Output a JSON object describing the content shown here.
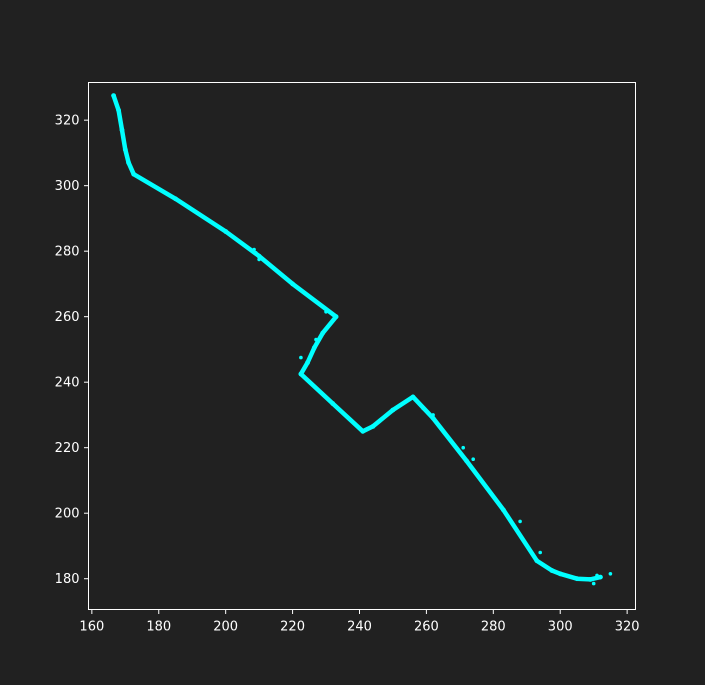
{
  "chart_data": {
    "type": "scatter",
    "title": "",
    "xlabel": "",
    "ylabel": "",
    "xlim": [
      159,
      322.5
    ],
    "ylim": [
      170.6,
      331.5
    ],
    "xticks": [
      160,
      180,
      200,
      220,
      240,
      260,
      280,
      300,
      320
    ],
    "yticks": [
      180,
      200,
      220,
      240,
      260,
      280,
      300,
      320
    ],
    "grid": false,
    "legend": "none",
    "colors": {
      "background": "#212121",
      "axes": "#ffffff",
      "series": "#00ffff"
    },
    "series": [
      {
        "style": "dense-points",
        "x": [
          166.5,
          168.0,
          169.0,
          170.0,
          171.0,
          172.5,
          185.0,
          200.0,
          210.0,
          220.0,
          233.0,
          229.0,
          226.5,
          224.5,
          222.5,
          232.0,
          241.0,
          244.0,
          250.0,
          256.0,
          262.0,
          272.0,
          283.0,
          293.0,
          297.5,
          300.0,
          305.0,
          309.0,
          312.0
        ],
        "y": [
          327.5,
          323.0,
          317.0,
          311.0,
          307.0,
          303.5,
          296.0,
          286.0,
          278.5,
          270.0,
          260.0,
          255.0,
          250.5,
          246.0,
          242.5,
          233.5,
          225.0,
          226.5,
          231.5,
          235.5,
          229.0,
          216.0,
          201.0,
          185.5,
          182.5,
          181.5,
          180.0,
          179.8,
          180.5
        ]
      }
    ],
    "outliers": {
      "x": [
        208.5,
        209.0,
        210.0,
        230.0,
        222.5,
        227.0,
        259.0,
        262.0,
        271.0,
        274.0,
        288.0,
        294.0,
        310.0,
        311.0,
        315.0
      ],
      "y": [
        280.5,
        279.5,
        277.5,
        261.5,
        247.5,
        253.0,
        232.0,
        230.0,
        220.0,
        216.5,
        197.5,
        188.0,
        178.5,
        181.0,
        181.5
      ]
    }
  }
}
